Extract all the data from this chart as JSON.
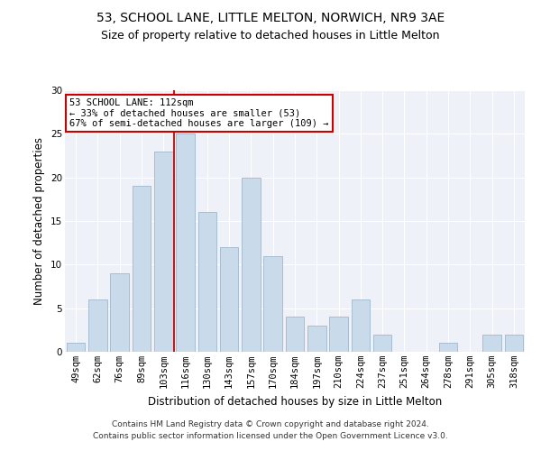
{
  "title1": "53, SCHOOL LANE, LITTLE MELTON, NORWICH, NR9 3AE",
  "title2": "Size of property relative to detached houses in Little Melton",
  "xlabel": "Distribution of detached houses by size in Little Melton",
  "ylabel": "Number of detached properties",
  "categories": [
    "49sqm",
    "62sqm",
    "76sqm",
    "89sqm",
    "103sqm",
    "116sqm",
    "130sqm",
    "143sqm",
    "157sqm",
    "170sqm",
    "184sqm",
    "197sqm",
    "210sqm",
    "224sqm",
    "237sqm",
    "251sqm",
    "264sqm",
    "278sqm",
    "291sqm",
    "305sqm",
    "318sqm"
  ],
  "values": [
    1,
    6,
    9,
    19,
    23,
    25,
    16,
    12,
    20,
    11,
    4,
    3,
    4,
    6,
    2,
    0,
    0,
    1,
    0,
    2,
    2
  ],
  "bar_color": "#c9daea",
  "bar_edge_color": "#a0b8cc",
  "vline_x": 4.5,
  "vline_color": "#cc0000",
  "annotation_text": "53 SCHOOL LANE: 112sqm\n← 33% of detached houses are smaller (53)\n67% of semi-detached houses are larger (109) →",
  "annotation_box_color": "#ffffff",
  "annotation_box_edge": "#cc0000",
  "ylim": [
    0,
    30
  ],
  "yticks": [
    0,
    5,
    10,
    15,
    20,
    25,
    30
  ],
  "footer": "Contains HM Land Registry data © Crown copyright and database right 2024.\nContains public sector information licensed under the Open Government Licence v3.0.",
  "bg_color": "#eef2f8",
  "title1_fontsize": 10,
  "title2_fontsize": 9,
  "xlabel_fontsize": 8.5,
  "ylabel_fontsize": 8.5,
  "tick_fontsize": 7.5,
  "annot_fontsize": 7.5,
  "footer_fontsize": 6.5
}
